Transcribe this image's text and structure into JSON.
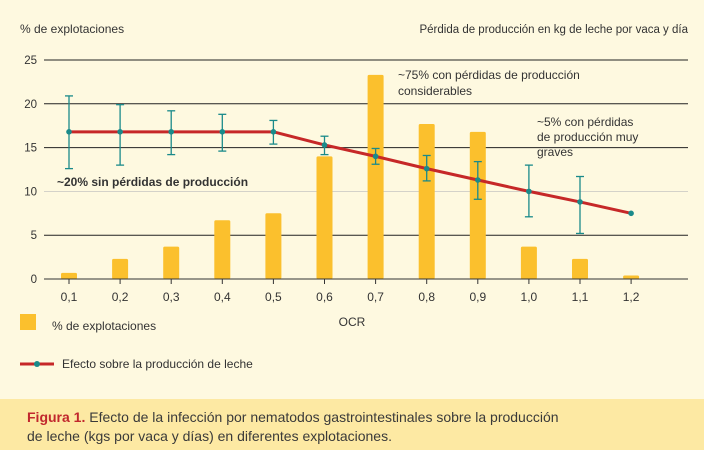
{
  "chart_data": {
    "type": "bar+line",
    "ylabel_left": "% de explotaciones",
    "ylabel_right": "Pérdida de producción en kg de leche por vaca y día",
    "xlabel": "OCR",
    "ylim": [
      0,
      25
    ],
    "yticks": [
      0,
      5,
      10,
      15,
      20,
      25
    ],
    "grid": "horizontal at 5, 15, 20, 25",
    "categories": [
      "0,1",
      "0,2",
      "0,3",
      "0,4",
      "0,5",
      "0,6",
      "0,7",
      "0,8",
      "0,9",
      "1,0",
      "1,1",
      "1,2"
    ],
    "series": [
      {
        "name": "% de explotaciones",
        "type": "bar",
        "color": "#fbc02d",
        "values": [
          0.7,
          2.3,
          3.7,
          6.7,
          7.5,
          14.0,
          23.3,
          17.7,
          16.8,
          3.7,
          2.3,
          0.4
        ]
      },
      {
        "name": "Efecto sobre la producción de leche",
        "type": "line",
        "color": "#c62828",
        "marker_color": "#1a8a8a",
        "values": [
          16.8,
          16.8,
          16.8,
          16.8,
          16.8,
          15.3,
          14.0,
          12.6,
          11.3,
          10.0,
          8.8,
          7.5
        ],
        "error_low": [
          12.6,
          13.0,
          14.2,
          14.6,
          15.4,
          14.2,
          13.1,
          11.2,
          9.1,
          7.1,
          5.2,
          null
        ],
        "error_high": [
          20.9,
          19.9,
          19.2,
          18.8,
          18.1,
          16.3,
          14.9,
          14.1,
          13.4,
          13.0,
          11.7,
          null
        ]
      }
    ],
    "annotations": [
      {
        "text": "~20% sin pérdidas de producción"
      },
      {
        "text": "~75% con pérdidas de producción considerables"
      },
      {
        "text": "~5% con pérdidas de producción muy graves"
      }
    ],
    "legend_placement": "bottom-left"
  },
  "caption": {
    "label": "Figura 1.",
    "text": "Efecto de la infección por nematodos gastrointestinales sobre la producción\nde leche (kgs por vaca y días) en diferentes explotaciones."
  },
  "colors": {
    "background": "#fef9e0",
    "caption_background": "#fde9a3",
    "bar": "#fbc02d",
    "line": "#c62828",
    "marker": "#1a8a8a",
    "caption_label": "#c1272d"
  }
}
